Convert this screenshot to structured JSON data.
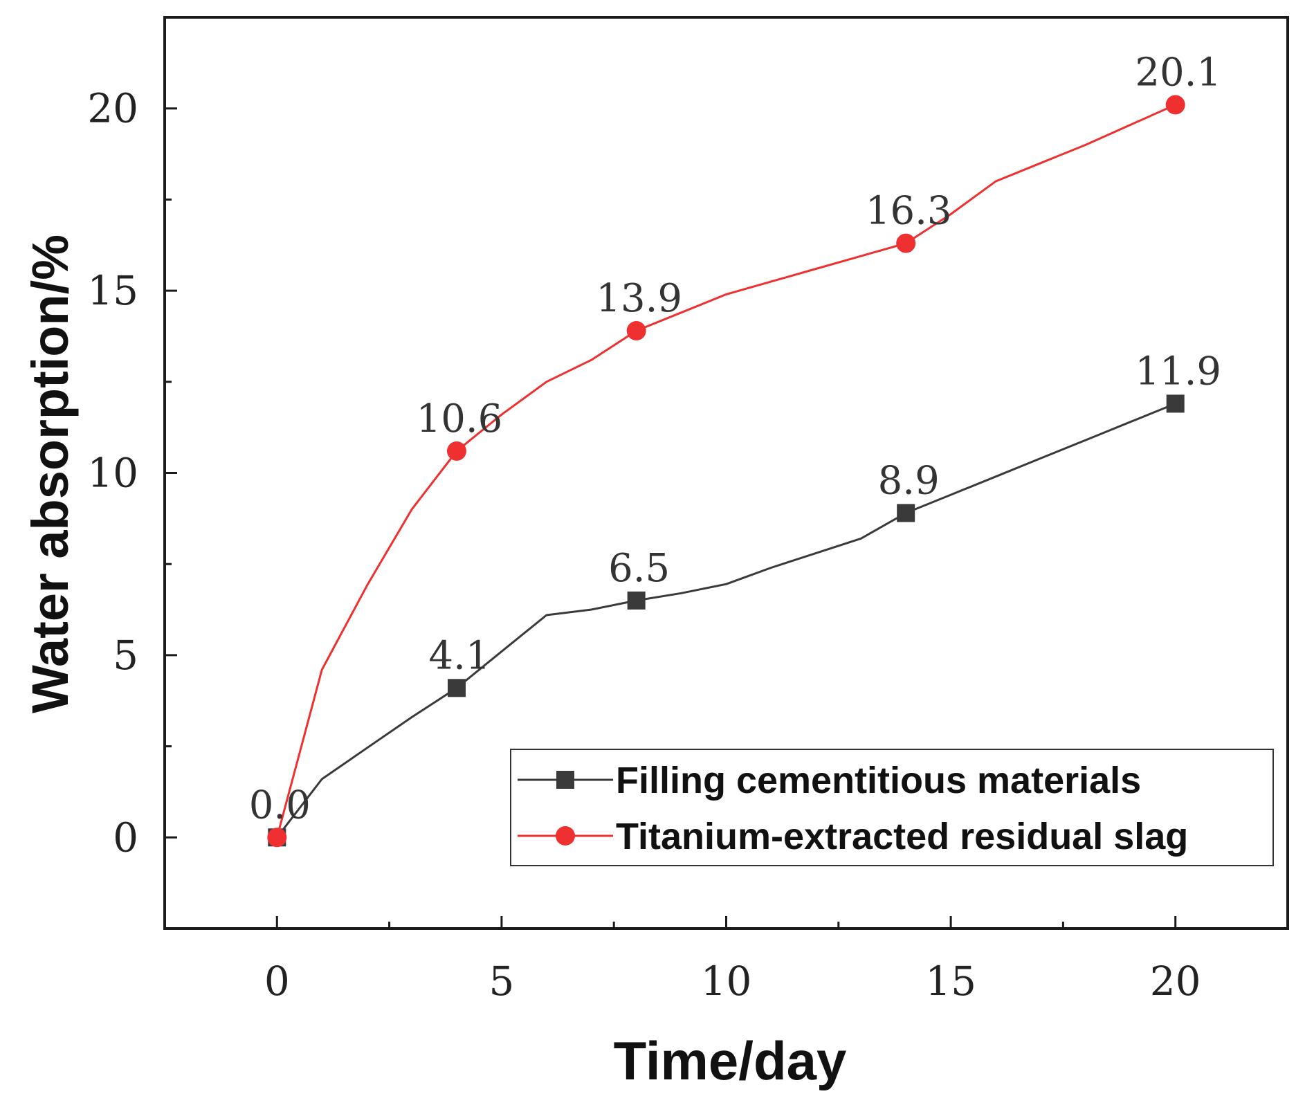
{
  "chart_data": {
    "type": "line",
    "title": "",
    "xlabel": "Time/day",
    "ylabel": "Water absorption/%",
    "xlim": [
      -2.5,
      22.5
    ],
    "ylim": [
      -2.5,
      22.5
    ],
    "xticks": [
      0,
      5,
      10,
      15,
      20
    ],
    "yticks": [
      0,
      5,
      10,
      15,
      20
    ],
    "legend_position": "bottom-right",
    "grid": false,
    "series": [
      {
        "name": "Filling cementitious materials",
        "color": "#3a3a3a",
        "marker": "square",
        "points": [
          {
            "x": 0,
            "y": 0.0,
            "label": "0.0"
          },
          {
            "x": 4,
            "y": 4.1,
            "label": "4.1"
          },
          {
            "x": 8,
            "y": 6.5,
            "label": "6.5"
          },
          {
            "x": 14,
            "y": 8.9,
            "label": "8.9"
          },
          {
            "x": 20,
            "y": 11.9,
            "label": "11.9"
          }
        ],
        "curve": [
          [
            0,
            0
          ],
          [
            1,
            1.6
          ],
          [
            2,
            2.45
          ],
          [
            3,
            3.3
          ],
          [
            4,
            4.1
          ],
          [
            5,
            5.1
          ],
          [
            6,
            6.1
          ],
          [
            7,
            6.25
          ],
          [
            8,
            6.5
          ],
          [
            9,
            6.7
          ],
          [
            10,
            6.95
          ],
          [
            11,
            7.4
          ],
          [
            12,
            7.8
          ],
          [
            13,
            8.2
          ],
          [
            14,
            8.9
          ],
          [
            15,
            9.4
          ],
          [
            16,
            9.9
          ],
          [
            17,
            10.4
          ],
          [
            18,
            10.9
          ],
          [
            19,
            11.4
          ],
          [
            20,
            11.9
          ]
        ]
      },
      {
        "name": "Titanium-extracted residual slag",
        "color": "#ee3030",
        "marker": "circle",
        "points": [
          {
            "x": 0,
            "y": 0.0,
            "label": ""
          },
          {
            "x": 4,
            "y": 10.6,
            "label": "10.6"
          },
          {
            "x": 8,
            "y": 13.9,
            "label": "13.9"
          },
          {
            "x": 14,
            "y": 16.3,
            "label": "16.3"
          },
          {
            "x": 20,
            "y": 20.1,
            "label": "20.1"
          }
        ],
        "curve": [
          [
            0,
            0
          ],
          [
            1,
            4.6
          ],
          [
            2,
            6.9
          ],
          [
            3,
            9.0
          ],
          [
            4,
            10.6
          ],
          [
            5,
            11.6
          ],
          [
            6,
            12.5
          ],
          [
            7,
            13.1
          ],
          [
            8,
            13.9
          ],
          [
            9,
            14.4
          ],
          [
            10,
            14.9
          ],
          [
            11,
            15.25
          ],
          [
            12,
            15.6
          ],
          [
            13,
            15.95
          ],
          [
            14,
            16.3
          ],
          [
            15,
            17.1
          ],
          [
            16,
            18.0
          ],
          [
            17,
            18.5
          ],
          [
            18,
            19.0
          ],
          [
            19,
            19.55
          ],
          [
            20,
            20.1
          ]
        ]
      }
    ]
  }
}
